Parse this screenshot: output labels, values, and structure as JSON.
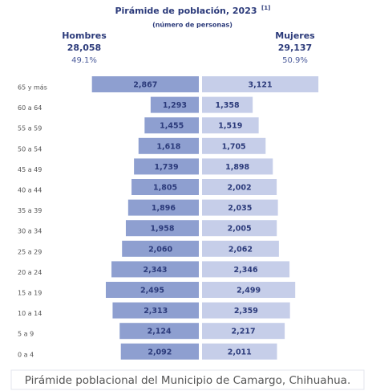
{
  "chart_data": {
    "type": "pyramid",
    "title": "Pirámide de población, 2023",
    "title_footnote": "[1]",
    "subtitle": "(número de personas)",
    "categories": [
      "65 y más",
      "60 a 64",
      "55 a 59",
      "50 a 54",
      "45 a 49",
      "40 a 44",
      "35 a 39",
      "30 a 34",
      "25 a 29",
      "20 a 24",
      "15 a 19",
      "10 a 14",
      "5 a 9",
      "0 a 4"
    ],
    "series": [
      {
        "name": "Hombres",
        "color": "#8e9fd0",
        "total": 28058,
        "total_label": "28,058",
        "share": 49.1,
        "share_label": "49.1%",
        "values": [
          2867,
          1293,
          1455,
          1618,
          1739,
          1805,
          1896,
          1958,
          2060,
          2343,
          2495,
          2313,
          2124,
          2092
        ],
        "value_labels": [
          "2,867",
          "1,293",
          "1,455",
          "1,618",
          "1,739",
          "1,805",
          "1,896",
          "1,958",
          "2,060",
          "2,343",
          "2,495",
          "2,313",
          "2,124",
          "2,092"
        ]
      },
      {
        "name": "Mujeres",
        "color": "#c6cee9",
        "total": 29137,
        "total_label": "29,137",
        "share": 50.9,
        "share_label": "50.9%",
        "values": [
          3121,
          1358,
          1519,
          1705,
          1898,
          2002,
          2035,
          2005,
          2062,
          2346,
          2499,
          2359,
          2217,
          2011
        ],
        "value_labels": [
          "3,121",
          "1,358",
          "1,519",
          "1,705",
          "1,898",
          "2,002",
          "2,035",
          "2,005",
          "2,062",
          "2,346",
          "2,499",
          "2,359",
          "2,217",
          "2,011"
        ]
      }
    ],
    "caption": "Pirámide poblacional del Municipio de Camargo, Chihuahua."
  }
}
